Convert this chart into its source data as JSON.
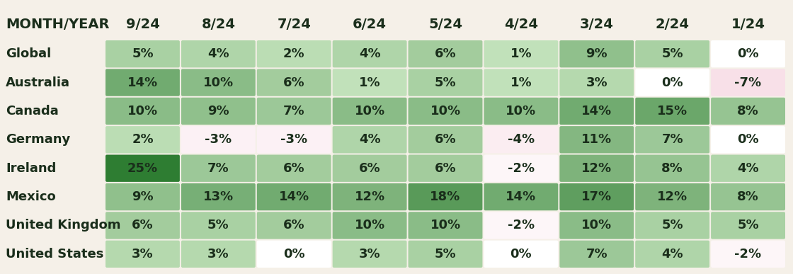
{
  "columns": [
    "9/24",
    "8/24",
    "7/24",
    "6/24",
    "5/24",
    "4/24",
    "3/24",
    "2/24",
    "1/24"
  ],
  "rows": [
    "Global",
    "Australia",
    "Canada",
    "Germany",
    "Ireland",
    "Mexico",
    "United Kingdom",
    "United States"
  ],
  "values": [
    [
      5,
      4,
      2,
      4,
      6,
      1,
      9,
      5,
      0
    ],
    [
      14,
      10,
      6,
      1,
      5,
      1,
      3,
      0,
      -7
    ],
    [
      10,
      9,
      7,
      10,
      10,
      10,
      14,
      15,
      8
    ],
    [
      2,
      -3,
      -3,
      4,
      6,
      -4,
      11,
      7,
      0
    ],
    [
      25,
      7,
      6,
      6,
      6,
      -2,
      12,
      8,
      4
    ],
    [
      9,
      13,
      14,
      12,
      18,
      14,
      17,
      12,
      8
    ],
    [
      6,
      5,
      6,
      10,
      10,
      -2,
      10,
      5,
      5
    ],
    [
      3,
      3,
      0,
      3,
      5,
      0,
      7,
      4,
      -2
    ]
  ],
  "header_label": "MONTH/YEAR",
  "bg_color": "#f5f0e8",
  "header_text_color": "#1a2e1b",
  "row_label_color": "#1a2e1b",
  "cell_text_color": "#1a2e1b",
  "vmax": 25,
  "vmin": -7,
  "col_header_fontsize": 14,
  "row_label_fontsize": 13,
  "cell_fontsize": 13
}
